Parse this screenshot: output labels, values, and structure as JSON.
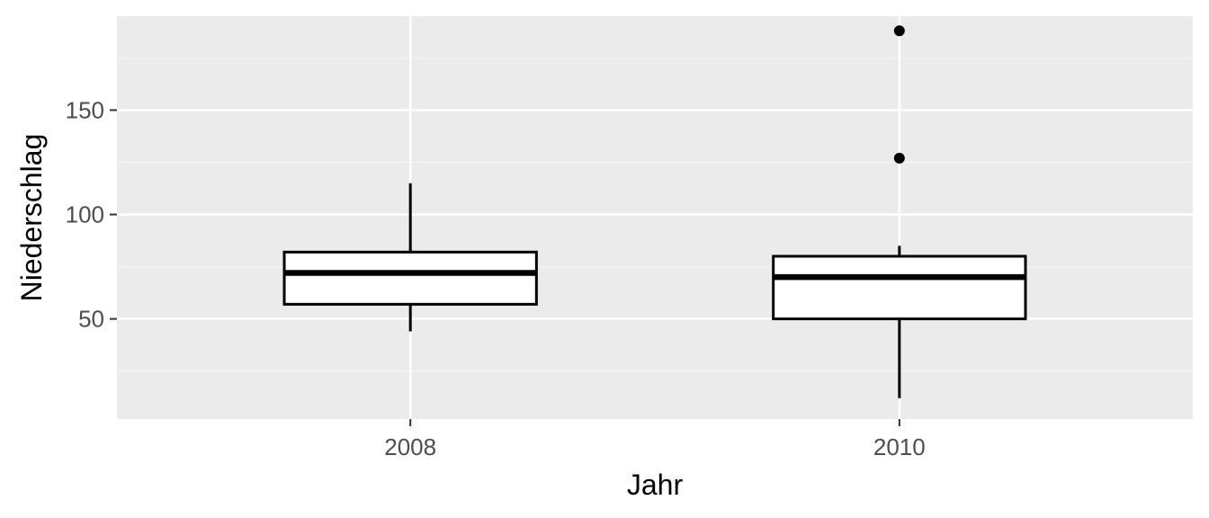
{
  "chart_data": {
    "type": "boxplot",
    "xlabel": "Jahr",
    "ylabel": "Niederschlag",
    "categories": [
      "2008",
      "2010"
    ],
    "ylim": [
      2,
      195
    ],
    "y_ticks": [
      50,
      100,
      150
    ],
    "grid": true,
    "legend": "none",
    "boxes": [
      {
        "category": "2008",
        "whisker_low": 44,
        "q1": 57,
        "median": 72,
        "q3": 82,
        "whisker_high": 115,
        "outliers": []
      },
      {
        "category": "2010",
        "whisker_low": 12,
        "q1": 50,
        "median": 70,
        "q3": 80,
        "whisker_high": 85,
        "outliers": [
          127,
          188
        ]
      }
    ],
    "colors": {
      "panel_background": "#ebebeb",
      "grid_major": "#ffffff",
      "grid_minor": "#f5f5f5",
      "box_fill": "#ffffff",
      "box_stroke": "#000000",
      "tick_text": "#4d4d4d",
      "title_text": "#000000"
    }
  }
}
